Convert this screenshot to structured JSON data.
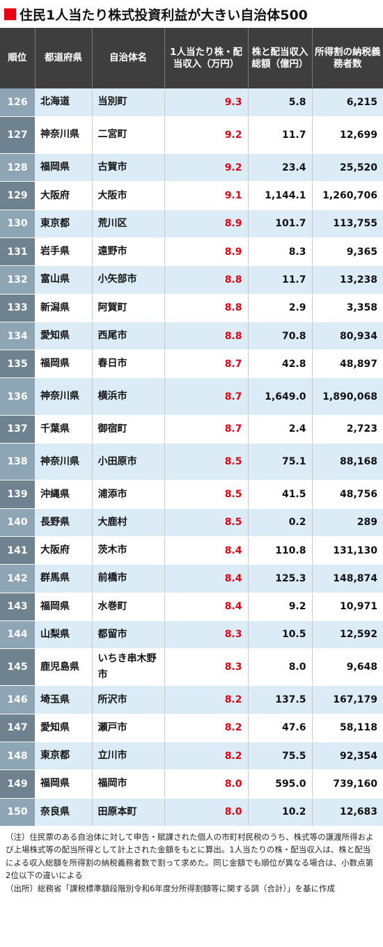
{
  "title": "住民1人当たり株式投資利益が大きい自治体500",
  "headers": [
    "順位",
    "都道府県",
    "自治体名",
    "1人当たり株・配当収入（万円）",
    "株と配当収入総額（億円）",
    "所得割の納税義務者数"
  ],
  "rows": [
    {
      "rank": "126",
      "pref": "北海道",
      "city": "当別町",
      "per": "9.3",
      "total": "5.8",
      "payers": "6,215"
    },
    {
      "rank": "127",
      "pref": "神奈川県",
      "city": "二宮町",
      "per": "9.2",
      "total": "11.7",
      "payers": "12,699"
    },
    {
      "rank": "128",
      "pref": "福岡県",
      "city": "古賀市",
      "per": "9.2",
      "total": "23.4",
      "payers": "25,520"
    },
    {
      "rank": "129",
      "pref": "大阪府",
      "city": "大阪市",
      "per": "9.1",
      "total": "1,144.1",
      "payers": "1,260,706"
    },
    {
      "rank": "130",
      "pref": "東京都",
      "city": "荒川区",
      "per": "8.9",
      "total": "101.7",
      "payers": "113,755"
    },
    {
      "rank": "131",
      "pref": "岩手県",
      "city": "遠野市",
      "per": "8.9",
      "total": "8.3",
      "payers": "9,365"
    },
    {
      "rank": "132",
      "pref": "富山県",
      "city": "小矢部市",
      "per": "8.8",
      "total": "11.7",
      "payers": "13,238"
    },
    {
      "rank": "133",
      "pref": "新潟県",
      "city": "阿賀町",
      "per": "8.8",
      "total": "2.9",
      "payers": "3,358"
    },
    {
      "rank": "134",
      "pref": "愛知県",
      "city": "西尾市",
      "per": "8.8",
      "total": "70.8",
      "payers": "80,934"
    },
    {
      "rank": "135",
      "pref": "福岡県",
      "city": "春日市",
      "per": "8.7",
      "total": "42.8",
      "payers": "48,897"
    },
    {
      "rank": "136",
      "pref": "神奈川県",
      "city": "横浜市",
      "per": "8.7",
      "total": "1,649.0",
      "payers": "1,890,068"
    },
    {
      "rank": "137",
      "pref": "千葉県",
      "city": "御宿町",
      "per": "8.7",
      "total": "2.4",
      "payers": "2,723"
    },
    {
      "rank": "138",
      "pref": "神奈川県",
      "city": "小田原市",
      "per": "8.5",
      "total": "75.1",
      "payers": "88,168"
    },
    {
      "rank": "139",
      "pref": "沖縄県",
      "city": "浦添市",
      "per": "8.5",
      "total": "41.5",
      "payers": "48,756"
    },
    {
      "rank": "140",
      "pref": "長野県",
      "city": "大鹿村",
      "per": "8.5",
      "total": "0.2",
      "payers": "289"
    },
    {
      "rank": "141",
      "pref": "大阪府",
      "city": "茨木市",
      "per": "8.4",
      "total": "110.8",
      "payers": "131,130"
    },
    {
      "rank": "142",
      "pref": "群馬県",
      "city": "前橋市",
      "per": "8.4",
      "total": "125.3",
      "payers": "148,874"
    },
    {
      "rank": "143",
      "pref": "福岡県",
      "city": "水巻町",
      "per": "8.4",
      "total": "9.2",
      "payers": "10,971"
    },
    {
      "rank": "144",
      "pref": "山梨県",
      "city": "都留市",
      "per": "8.3",
      "total": "10.5",
      "payers": "12,592"
    },
    {
      "rank": "145",
      "pref": "鹿児島県",
      "city": "いちき串木野市",
      "per": "8.3",
      "total": "8.0",
      "payers": "9,648"
    },
    {
      "rank": "146",
      "pref": "埼玉県",
      "city": "所沢市",
      "per": "8.2",
      "total": "137.5",
      "payers": "167,179"
    },
    {
      "rank": "147",
      "pref": "愛知県",
      "city": "瀬戸市",
      "per": "8.2",
      "total": "47.6",
      "payers": "58,118"
    },
    {
      "rank": "148",
      "pref": "東京都",
      "city": "立川市",
      "per": "8.2",
      "total": "75.5",
      "payers": "92,354"
    },
    {
      "rank": "149",
      "pref": "福岡県",
      "city": "福岡市",
      "per": "8.0",
      "total": "595.0",
      "payers": "739,160"
    },
    {
      "rank": "150",
      "pref": "奈良県",
      "city": "田原本町",
      "per": "8.0",
      "total": "10.2",
      "payers": "12,683"
    }
  ],
  "notes": [
    "（注）住民票のある自治体に対して申告・賦課された個人の市町村民税のうち、株式等の譲渡所得および上場株式等の配当所得として計上された金額をもとに算出。1人当たりの株・配当収入は、株と配当による収入総額を所得割の納税義務者数で割って求めた。同じ金額でも順位が異なる場合は、小数点第2位以下の違いによる",
    "（出所）総務省「課税標準額段階別令和6年度分所得割額等に関する調（合計）」を基に作成"
  ],
  "colors": {
    "accent": "#e60012",
    "header_bg": "#3e3e3e",
    "row_tint": "#dcecf7",
    "rank_light": "#8ea5b6",
    "rank_dark": "#6e8290"
  }
}
